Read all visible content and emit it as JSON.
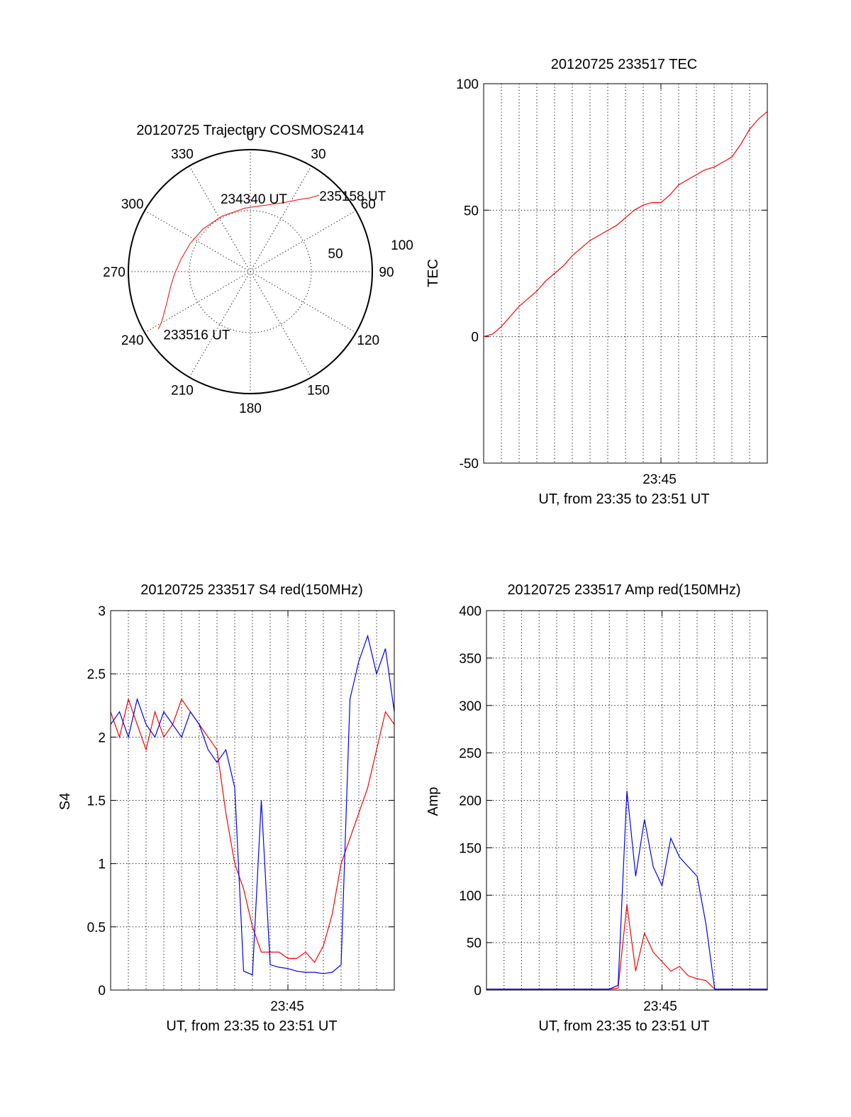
{
  "chart_data": [
    {
      "id": "polar",
      "type": "scatter",
      "title": "20120725 Trajectory COSMOS2414",
      "angle_labels": [
        "0",
        "30",
        "60",
        "90",
        "120",
        "150",
        "180",
        "210",
        "240",
        "270",
        "300",
        "330"
      ],
      "radial_labels": [
        "50",
        "100"
      ],
      "trajectory": {
        "azimuth_deg": [
          238,
          240,
          243,
          247,
          252,
          259,
          268,
          280,
          295,
          312,
          333,
          355,
          12,
          25,
          33,
          39,
          42
        ],
        "elevation_deg": [
          10,
          14,
          18,
          22,
          26,
          30,
          34,
          38,
          41,
          43,
          44,
          43,
          40,
          34,
          27,
          20,
          14
        ]
      },
      "annotations": [
        {
          "text": "235158 UT",
          "az": 42,
          "el": 14
        },
        {
          "text": "234340 UT",
          "az": 0,
          "el": 58
        },
        {
          "text": "233516 UT",
          "az": 218,
          "el": 30
        }
      ],
      "trajectory_color": "#ff0000"
    },
    {
      "id": "tec",
      "type": "line",
      "title": "20120725 233517 TEC",
      "ylabel": "TEC",
      "xlabel": "UT, from 23:35 to 23:51 UT",
      "xtick": "23:45",
      "ylim": [
        -50,
        100
      ],
      "yticks": [
        -50,
        0,
        50,
        100
      ],
      "x_minutes": [
        0,
        0.5,
        1,
        1.5,
        2,
        2.5,
        3,
        3.5,
        4,
        4.5,
        5,
        5.5,
        6,
        6.5,
        7,
        7.5,
        8,
        8.5,
        9,
        9.5,
        10,
        10.5,
        11,
        11.5,
        12,
        12.5,
        13,
        13.5,
        14,
        14.5,
        15,
        15.5,
        16
      ],
      "series": [
        {
          "color": "#ff0000",
          "values": [
            0,
            1,
            4,
            8,
            12,
            15,
            18,
            22,
            25,
            28,
            32,
            35,
            38,
            40,
            42,
            44,
            47,
            50,
            52,
            53,
            53,
            56,
            60,
            62,
            64,
            66,
            67,
            69,
            71,
            76,
            82,
            86,
            89
          ]
        }
      ]
    },
    {
      "id": "s4",
      "type": "line",
      "title": "20120725 233517 S4 red(150MHz)",
      "ylabel": "S4",
      "xlabel": "UT, from 23:35 to 23:51 UT",
      "xtick": "23:45",
      "ylim": [
        0,
        3
      ],
      "yticks": [
        "0",
        "0.5",
        "1",
        "1.5",
        "2",
        "2.5",
        "3"
      ],
      "x_minutes": [
        0,
        0.5,
        1,
        1.5,
        2,
        2.5,
        3,
        3.5,
        4,
        4.5,
        5,
        5.5,
        6,
        6.5,
        7,
        7.5,
        8,
        8.5,
        9,
        9.5,
        10,
        10.5,
        11,
        11.5,
        12,
        12.5,
        13,
        13.5,
        14,
        14.5,
        15,
        15.5,
        16
      ],
      "series": [
        {
          "color": "#ff0000",
          "values": [
            2.2,
            2.0,
            2.3,
            2.1,
            1.9,
            2.2,
            2.0,
            2.1,
            2.3,
            2.2,
            2.1,
            2.0,
            1.9,
            1.4,
            1.0,
            0.8,
            0.5,
            0.3,
            0.3,
            0.3,
            0.25,
            0.25,
            0.3,
            0.22,
            0.35,
            0.6,
            1.0,
            1.2,
            1.4,
            1.6,
            1.9,
            2.2,
            2.1
          ]
        },
        {
          "color": "#0000ff",
          "values": [
            2.1,
            2.2,
            2.0,
            2.3,
            2.1,
            2.0,
            2.2,
            2.1,
            2.0,
            2.2,
            2.1,
            1.9,
            1.8,
            1.9,
            1.6,
            0.15,
            0.12,
            1.5,
            0.2,
            0.18,
            0.17,
            0.15,
            0.14,
            0.14,
            0.13,
            0.14,
            0.2,
            2.3,
            2.6,
            2.8,
            2.5,
            2.7,
            2.2
          ]
        }
      ]
    },
    {
      "id": "amp",
      "type": "line",
      "title": "20120725 233517 Amp red(150MHz)",
      "ylabel": "Amp",
      "xlabel": "UT, from 23:35 to 23:51 UT",
      "xtick": "23:45",
      "ylim": [
        0,
        400
      ],
      "yticks": [
        0,
        50,
        100,
        150,
        200,
        250,
        300,
        350,
        400
      ],
      "x_minutes": [
        0,
        0.5,
        1,
        1.5,
        2,
        2.5,
        3,
        3.5,
        4,
        4.5,
        5,
        5.5,
        6,
        6.5,
        7,
        7.5,
        8,
        8.5,
        9,
        9.5,
        10,
        10.5,
        11,
        11.5,
        12,
        12.5,
        13,
        13.5,
        14,
        14.5,
        15,
        15.5,
        16
      ],
      "series": [
        {
          "color": "#ff0000",
          "values": [
            1,
            1,
            1,
            1,
            1,
            1,
            1,
            1,
            1,
            1,
            1,
            1,
            1,
            1,
            1,
            2,
            90,
            20,
            60,
            40,
            30,
            20,
            25,
            15,
            12,
            10,
            1,
            1,
            1,
            1,
            1,
            1,
            1
          ]
        },
        {
          "color": "#0000ff",
          "values": [
            1,
            1,
            1,
            1,
            1,
            1,
            1,
            1,
            1,
            1,
            1,
            1,
            1,
            1,
            1,
            5,
            210,
            120,
            180,
            130,
            110,
            160,
            140,
            130,
            120,
            70,
            1,
            1,
            1,
            1,
            1,
            1,
            1
          ]
        }
      ]
    }
  ]
}
